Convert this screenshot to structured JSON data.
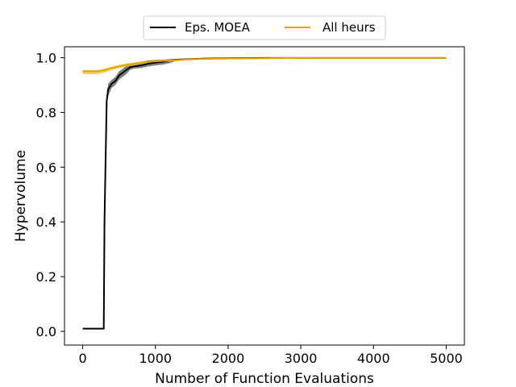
{
  "chart_data": {
    "type": "line",
    "xlabel": "Number of Function Evaluations",
    "ylabel": "Hypervolume",
    "xlim": [
      -250,
      5250
    ],
    "ylim": [
      -0.05,
      1.04
    ],
    "xticks": [
      0,
      1000,
      2000,
      3000,
      4000,
      5000
    ],
    "yticks": [
      0.0,
      0.2,
      0.4,
      0.6,
      0.8,
      1.0
    ],
    "xtick_labels": [
      "0",
      "1000",
      "2000",
      "3000",
      "4000",
      "5000"
    ],
    "ytick_labels": [
      "0.0",
      "0.2",
      "0.4",
      "0.6",
      "0.8",
      "1.0"
    ],
    "grid": false,
    "legend_position": "top-center, above plot",
    "series": [
      {
        "name": "Eps. MOEA",
        "color": "#000000",
        "band_color": "#555555",
        "x": [
          0,
          100,
          200,
          290,
          300,
          330,
          350,
          400,
          450,
          500,
          550,
          600,
          650,
          700,
          800,
          900,
          1000,
          1100,
          1200,
          1300,
          1500,
          1700,
          2000,
          2500,
          3000,
          4000,
          5000
        ],
        "y": [
          0.01,
          0.01,
          0.01,
          0.01,
          0.4,
          0.84,
          0.885,
          0.905,
          0.915,
          0.935,
          0.945,
          0.955,
          0.965,
          0.968,
          0.972,
          0.978,
          0.982,
          0.985,
          0.99,
          0.993,
          0.995,
          0.997,
          0.998,
          0.999,
          0.999,
          0.999,
          0.999
        ],
        "lower": [
          0.01,
          0.01,
          0.01,
          0.01,
          0.4,
          0.84,
          0.86,
          0.89,
          0.9,
          0.92,
          0.93,
          0.94,
          0.955,
          0.96,
          0.962,
          0.968,
          0.972,
          0.975,
          0.98,
          0.99,
          0.993,
          0.995,
          0.997,
          0.998,
          0.998,
          0.998,
          0.998
        ],
        "upper": [
          0.01,
          0.01,
          0.01,
          0.01,
          0.4,
          0.86,
          0.905,
          0.92,
          0.93,
          0.95,
          0.96,
          0.97,
          0.975,
          0.978,
          0.985,
          0.99,
          0.992,
          0.993,
          0.995,
          0.996,
          0.997,
          0.998,
          0.999,
          1.0,
          1.0,
          1.0,
          1.0
        ]
      },
      {
        "name": "All heurs",
        "color": "#e5a300",
        "band_color": "#f0c040",
        "x": [
          0,
          100,
          200,
          300,
          400,
          500,
          600,
          700,
          800,
          900,
          1000,
          1200,
          1400,
          1600,
          2000,
          2500,
          3000,
          4000,
          5000
        ],
        "y": [
          0.95,
          0.95,
          0.95,
          0.955,
          0.962,
          0.968,
          0.974,
          0.978,
          0.982,
          0.985,
          0.987,
          0.99,
          0.993,
          0.995,
          0.997,
          0.998,
          0.999,
          0.999,
          0.999
        ],
        "lower": [
          0.94,
          0.94,
          0.94,
          0.945,
          0.955,
          0.962,
          0.968,
          0.972,
          0.976,
          0.98,
          0.982,
          0.985,
          0.99,
          0.993,
          0.995,
          0.997,
          0.998,
          0.998,
          0.998
        ],
        "upper": [
          0.955,
          0.955,
          0.955,
          0.96,
          0.968,
          0.974,
          0.978,
          0.982,
          0.986,
          0.988,
          0.99,
          0.993,
          0.996,
          0.997,
          0.998,
          0.999,
          1.0,
          1.0,
          1.0
        ]
      }
    ]
  }
}
